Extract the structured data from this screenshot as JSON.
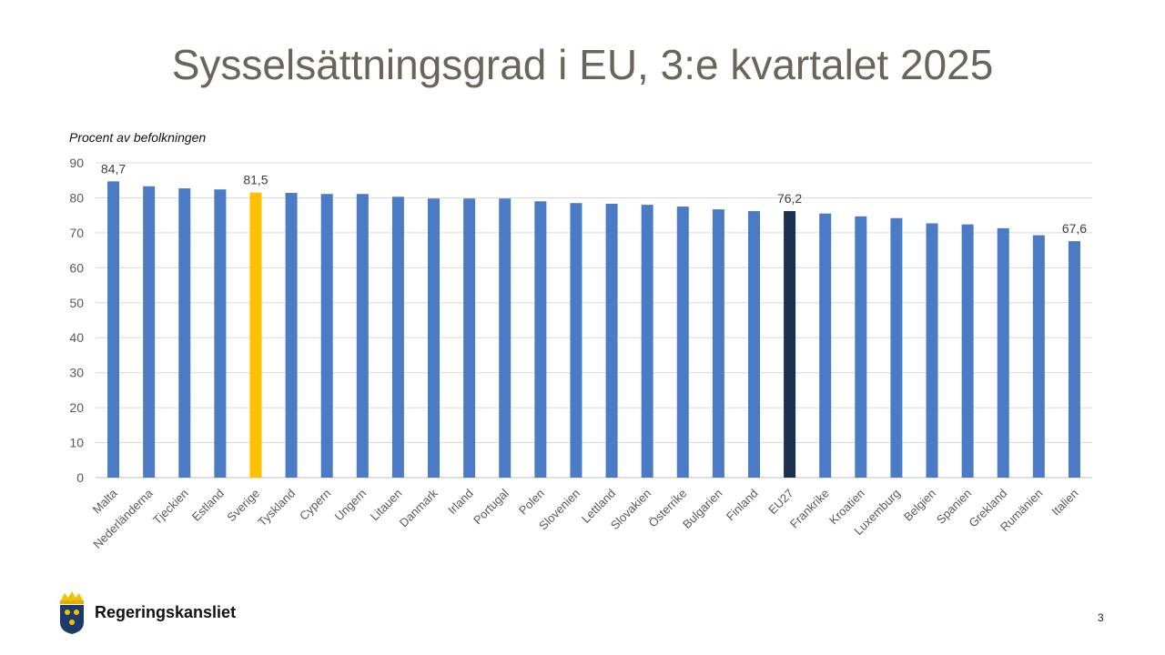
{
  "slide": {
    "title": "Sysselsättningsgrad i EU, 3:e kvartalet 2025",
    "page_number": "3",
    "logo_text": "Regeringskansliet"
  },
  "colors": {
    "default": "#4a7bc4",
    "highlight_sweden": "#ffc000",
    "highlight_eu27": "#1c3050",
    "title": "#6b6559"
  },
  "chart_data": {
    "type": "bar",
    "title": "",
    "ylabel": "Procent av befolkningen",
    "xlabel": "",
    "ylim": [
      0,
      90
    ],
    "yticks": [
      0,
      10,
      20,
      30,
      40,
      50,
      60,
      70,
      80,
      90
    ],
    "grid": true,
    "categories": [
      "Malta",
      "Nederländerna",
      "Tjeckien",
      "Estland",
      "Sverige",
      "Tyskland",
      "Cypern",
      "Ungern",
      "Litauen",
      "Danmark",
      "Irland",
      "Portugal",
      "Polen",
      "Slovenien",
      "Lettland",
      "Slovakien",
      "Österrike",
      "Bulgarien",
      "Finland",
      "EU27",
      "Frankrike",
      "Kroatien",
      "Luxemburg",
      "Belgien",
      "Spanien",
      "Grekland",
      "Rumänien",
      "Italien"
    ],
    "values": [
      84.7,
      83.3,
      82.7,
      82.4,
      81.5,
      81.4,
      81.1,
      81.1,
      80.3,
      79.8,
      79.8,
      79.8,
      79.0,
      78.5,
      78.3,
      78.0,
      77.5,
      76.7,
      76.2,
      76.2,
      75.5,
      74.7,
      74.2,
      72.7,
      72.4,
      71.3,
      69.3,
      67.6
    ],
    "data_labels": {
      "Malta": "84,7",
      "Sverige": "81,5",
      "EU27": "76,2",
      "Italien": "67,6"
    },
    "highlights": {
      "Sverige": "highlight_sweden",
      "EU27": "highlight_eu27"
    }
  }
}
